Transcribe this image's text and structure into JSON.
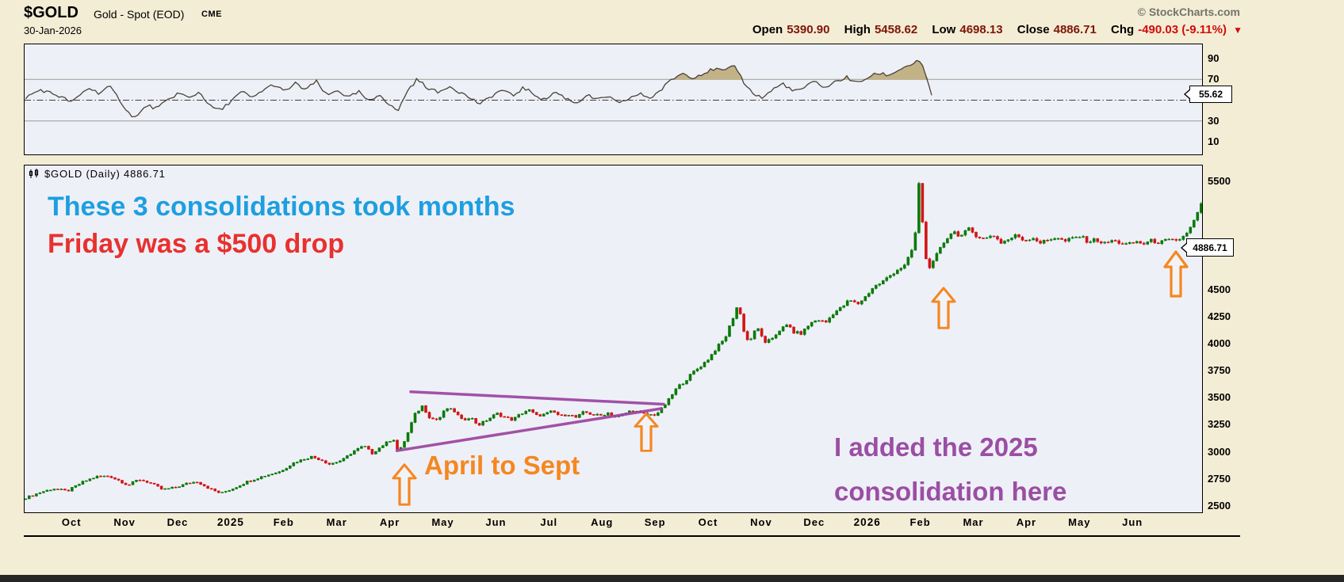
{
  "header": {
    "symbol": "$GOLD",
    "name": "Gold - Spot (EOD)",
    "exchange": "CME",
    "copyright": "© StockCharts.com",
    "date": "30-Jan-2026",
    "quote": {
      "open_label": "Open",
      "open_value": "5390.90",
      "high_label": "High",
      "high_value": "5458.62",
      "low_label": "Low",
      "low_value": "4698.13",
      "close_label": "Close",
      "close_value": "4886.71",
      "chg_label": "Chg",
      "chg_value": "-490.03 (-9.11%)",
      "chg_arrow": "▼"
    }
  },
  "main_panel": {
    "label": "$GOLD (Daily) 4886.71",
    "price_tag": "4886.71"
  },
  "rsi_panel": {
    "tag_value": "55.62"
  },
  "annotations": {
    "blue_text": "These 3 consolidations took months",
    "red_text": "Friday was a $500 drop",
    "orange_text": "April to Sept",
    "purple_line1": "I added the 2025",
    "purple_line2": "consolidation here"
  },
  "colors": {
    "background": "#f4edd5",
    "plot_bg": "#eef0f8",
    "candle_up": "#0a7a0a",
    "candle_down": "#d21414",
    "rsi_fill": "#c3b286",
    "rsi_line": "#4a4236",
    "trendline_purple": "#9c44a0",
    "annotation_blue": "#1d9fe0",
    "annotation_red": "#e8312e",
    "annotation_orange": "#f5871f",
    "annotation_purple": "#9b4ea3",
    "quote_value": "#7e1507",
    "quote_change": "#d40b0b"
  },
  "chart_data": [
    {
      "type": "candlestick",
      "title": "$GOLD Gold - Spot (EOD) CME, Daily",
      "x_unit": "months, 0 = Oct 2024",
      "ylim": [
        2425,
        5650
      ],
      "y_ticks": [
        5500,
        4500,
        4250,
        4000,
        3750,
        3500,
        3250,
        3000,
        2750,
        2500
      ],
      "x_ticks": [
        {
          "label": "Oct",
          "t": 0
        },
        {
          "label": "Nov",
          "t": 1
        },
        {
          "label": "Dec",
          "t": 2
        },
        {
          "label": "2025",
          "t": 3,
          "year": true
        },
        {
          "label": "Feb",
          "t": 4
        },
        {
          "label": "Mar",
          "t": 5
        },
        {
          "label": "Apr",
          "t": 6
        },
        {
          "label": "May",
          "t": 7
        },
        {
          "label": "Jun",
          "t": 8
        },
        {
          "label": "Jul",
          "t": 9
        },
        {
          "label": "Aug",
          "t": 10
        },
        {
          "label": "Sep",
          "t": 11
        },
        {
          "label": "Oct",
          "t": 12
        },
        {
          "label": "Nov",
          "t": 13
        },
        {
          "label": "Dec",
          "t": 14
        },
        {
          "label": "2026",
          "t": 15,
          "year": true
        },
        {
          "label": "Feb",
          "t": 16
        },
        {
          "label": "Mar",
          "t": 17
        },
        {
          "label": "Apr",
          "t": 18
        },
        {
          "label": "May",
          "t": 19
        },
        {
          "label": "Jun",
          "t": 20
        }
      ],
      "last_price": 4886.71,
      "series_anchors": [
        [
          -0.9,
          2570
        ],
        [
          -0.6,
          2625
        ],
        [
          -0.35,
          2660
        ],
        [
          -0.1,
          2635
        ],
        [
          0.2,
          2720
        ],
        [
          0.45,
          2770
        ],
        [
          0.7,
          2775
        ],
        [
          0.9,
          2730
        ],
        [
          1.05,
          2690
        ],
        [
          1.25,
          2745
        ],
        [
          1.45,
          2715
        ],
        [
          1.7,
          2650
        ],
        [
          1.95,
          2670
        ],
        [
          2.15,
          2705
        ],
        [
          2.35,
          2725
        ],
        [
          2.6,
          2655
        ],
        [
          2.8,
          2615
        ],
        [
          3.05,
          2665
        ],
        [
          3.3,
          2725
        ],
        [
          3.6,
          2775
        ],
        [
          3.9,
          2815
        ],
        [
          4.2,
          2905
        ],
        [
          4.5,
          2955
        ],
        [
          4.7,
          2925
        ],
        [
          4.85,
          2885
        ],
        [
          5.1,
          2925
        ],
        [
          5.3,
          3005
        ],
        [
          5.5,
          3055
        ],
        [
          5.65,
          2985
        ],
        [
          5.85,
          3060
        ],
        [
          6.05,
          3125
        ],
        [
          6.15,
          2990
        ],
        [
          6.3,
          3140
        ],
        [
          6.45,
          3340
        ],
        [
          6.6,
          3425
        ],
        [
          6.75,
          3310
        ],
        [
          6.9,
          3295
        ],
        [
          7.05,
          3405
        ],
        [
          7.2,
          3375
        ],
        [
          7.35,
          3290
        ],
        [
          7.5,
          3325
        ],
        [
          7.65,
          3245
        ],
        [
          7.85,
          3305
        ],
        [
          8.0,
          3355
        ],
        [
          8.15,
          3320
        ],
        [
          8.3,
          3295
        ],
        [
          8.45,
          3350
        ],
        [
          8.6,
          3390
        ],
        [
          8.75,
          3335
        ],
        [
          8.9,
          3345
        ],
        [
          9.05,
          3375
        ],
        [
          9.2,
          3330
        ],
        [
          9.35,
          3350
        ],
        [
          9.5,
          3315
        ],
        [
          9.65,
          3370
        ],
        [
          9.8,
          3345
        ],
        [
          9.95,
          3335
        ],
        [
          10.1,
          3360
        ],
        [
          10.25,
          3320
        ],
        [
          10.4,
          3350
        ],
        [
          10.55,
          3385
        ],
        [
          10.7,
          3360
        ],
        [
          10.85,
          3340
        ],
        [
          11.0,
          3345
        ],
        [
          11.1,
          3390
        ],
        [
          11.25,
          3485
        ],
        [
          11.4,
          3595
        ],
        [
          11.55,
          3655
        ],
        [
          11.7,
          3735
        ],
        [
          11.85,
          3795
        ],
        [
          12.0,
          3865
        ],
        [
          12.15,
          3965
        ],
        [
          12.3,
          4045
        ],
        [
          12.45,
          4235
        ],
        [
          12.55,
          4370
        ],
        [
          12.65,
          4135
        ],
        [
          12.75,
          4005
        ],
        [
          12.85,
          4105
        ],
        [
          12.95,
          4145
        ],
        [
          13.05,
          3995
        ],
        [
          13.2,
          4055
        ],
        [
          13.35,
          4135
        ],
        [
          13.5,
          4175
        ],
        [
          13.6,
          4105
        ],
        [
          13.75,
          4095
        ],
        [
          13.9,
          4185
        ],
        [
          14.05,
          4225
        ],
        [
          14.2,
          4195
        ],
        [
          14.35,
          4285
        ],
        [
          14.5,
          4335
        ],
        [
          14.65,
          4405
        ],
        [
          14.8,
          4365
        ],
        [
          14.95,
          4435
        ],
        [
          15.1,
          4525
        ],
        [
          15.25,
          4565
        ],
        [
          15.4,
          4625
        ],
        [
          15.55,
          4685
        ],
        [
          15.7,
          4725
        ],
        [
          15.82,
          4855
        ],
        [
          15.9,
          5045
        ],
        [
          15.97,
          5555
        ],
        [
          16.03,
          5105
        ],
        [
          16.09,
          4785
        ],
        [
          16.18,
          4700
        ],
        [
          16.3,
          4825
        ],
        [
          16.45,
          4955
        ],
        [
          16.6,
          5045
        ],
        [
          16.75,
          4995
        ],
        [
          16.9,
          5060
        ],
        [
          17.05,
          5000
        ],
        [
          17.2,
          4965
        ],
        [
          17.35,
          5015
        ],
        [
          17.5,
          4935
        ],
        [
          17.65,
          4965
        ],
        [
          17.8,
          5005
        ],
        [
          17.95,
          4955
        ],
        [
          18.1,
          4985
        ],
        [
          18.25,
          4935
        ],
        [
          18.4,
          4960
        ],
        [
          18.55,
          4990
        ],
        [
          18.7,
          4945
        ],
        [
          18.85,
          4975
        ],
        [
          19.0,
          4995
        ],
        [
          19.15,
          4945
        ],
        [
          19.3,
          4965
        ],
        [
          19.45,
          4925
        ],
        [
          19.6,
          4955
        ],
        [
          19.75,
          4935
        ],
        [
          19.9,
          4915
        ],
        [
          20.05,
          4945
        ],
        [
          20.2,
          4925
        ],
        [
          20.35,
          4955
        ],
        [
          20.5,
          4935
        ],
        [
          20.65,
          4960
        ],
        [
          20.8,
          4945
        ],
        [
          20.95,
          4995
        ],
        [
          21.1,
          5085
        ],
        [
          21.28,
          5285
        ]
      ],
      "trendlines": [
        {
          "t1": 6.38,
          "p1": 3555,
          "t2": 11.15,
          "p2": 3440
        },
        {
          "t1": 6.12,
          "p1": 3010,
          "t2": 11.1,
          "p2": 3400
        }
      ],
      "arrows": [
        {
          "t": 6.27,
          "tip_price": 2890,
          "h": 54
        },
        {
          "t": 10.83,
          "tip_price": 3355,
          "h": 50
        },
        {
          "t": 16.44,
          "tip_price": 4520,
          "h": 54
        },
        {
          "t": 20.82,
          "tip_price": 4860,
          "h": 60
        }
      ]
    },
    {
      "type": "line",
      "title": "RSI",
      "ylim": [
        0,
        100
      ],
      "y_ticks": [
        90,
        70,
        30,
        10
      ],
      "reference_lines": {
        "overbought": 70,
        "midline": 50,
        "oversold": 30
      },
      "last_value": 55.62,
      "series_anchors": [
        [
          -0.9,
          52
        ],
        [
          -0.6,
          60
        ],
        [
          -0.3,
          55
        ],
        [
          0.0,
          48
        ],
        [
          0.3,
          62
        ],
        [
          0.5,
          57
        ],
        [
          0.7,
          63
        ],
        [
          0.9,
          50
        ],
        [
          1.05,
          38
        ],
        [
          1.2,
          33
        ],
        [
          1.4,
          45
        ],
        [
          1.6,
          42
        ],
        [
          1.8,
          50
        ],
        [
          2.0,
          57
        ],
        [
          2.2,
          52
        ],
        [
          2.4,
          58
        ],
        [
          2.6,
          44
        ],
        [
          2.8,
          40
        ],
        [
          3.0,
          50
        ],
        [
          3.2,
          58
        ],
        [
          3.4,
          52
        ],
        [
          3.6,
          60
        ],
        [
          3.8,
          65
        ],
        [
          4.0,
          58
        ],
        [
          4.2,
          66
        ],
        [
          4.4,
          60
        ],
        [
          4.6,
          68
        ],
        [
          4.8,
          54
        ],
        [
          5.0,
          60
        ],
        [
          5.2,
          52
        ],
        [
          5.4,
          58
        ],
        [
          5.6,
          48
        ],
        [
          5.8,
          56
        ],
        [
          6.0,
          44
        ],
        [
          6.15,
          40
        ],
        [
          6.3,
          58
        ],
        [
          6.5,
          70
        ],
        [
          6.7,
          62
        ],
        [
          6.9,
          57
        ],
        [
          7.1,
          64
        ],
        [
          7.3,
          58
        ],
        [
          7.5,
          52
        ],
        [
          7.7,
          46
        ],
        [
          7.9,
          54
        ],
        [
          8.1,
          60
        ],
        [
          8.3,
          54
        ],
        [
          8.5,
          62
        ],
        [
          8.7,
          56
        ],
        [
          8.9,
          50
        ],
        [
          9.1,
          58
        ],
        [
          9.3,
          52
        ],
        [
          9.5,
          47
        ],
        [
          9.7,
          55
        ],
        [
          9.9,
          50
        ],
        [
          10.1,
          54
        ],
        [
          10.3,
          46
        ],
        [
          10.5,
          52
        ],
        [
          10.7,
          56
        ],
        [
          10.9,
          52
        ],
        [
          11.1,
          60
        ],
        [
          11.3,
          70
        ],
        [
          11.5,
          76
        ],
        [
          11.7,
          72
        ],
        [
          11.9,
          76
        ],
        [
          12.1,
          80
        ],
        [
          12.3,
          78
        ],
        [
          12.5,
          83
        ],
        [
          12.65,
          68
        ],
        [
          12.8,
          58
        ],
        [
          13.0,
          52
        ],
        [
          13.2,
          60
        ],
        [
          13.4,
          66
        ],
        [
          13.6,
          58
        ],
        [
          13.8,
          62
        ],
        [
          14.0,
          68
        ],
        [
          14.2,
          62
        ],
        [
          14.4,
          68
        ],
        [
          14.6,
          72
        ],
        [
          14.8,
          66
        ],
        [
          15.0,
          72
        ],
        [
          15.2,
          76
        ],
        [
          15.4,
          74
        ],
        [
          15.6,
          80
        ],
        [
          15.8,
          84
        ],
        [
          15.95,
          88
        ],
        [
          16.05,
          80
        ],
        [
          16.2,
          55.62
        ]
      ]
    }
  ]
}
